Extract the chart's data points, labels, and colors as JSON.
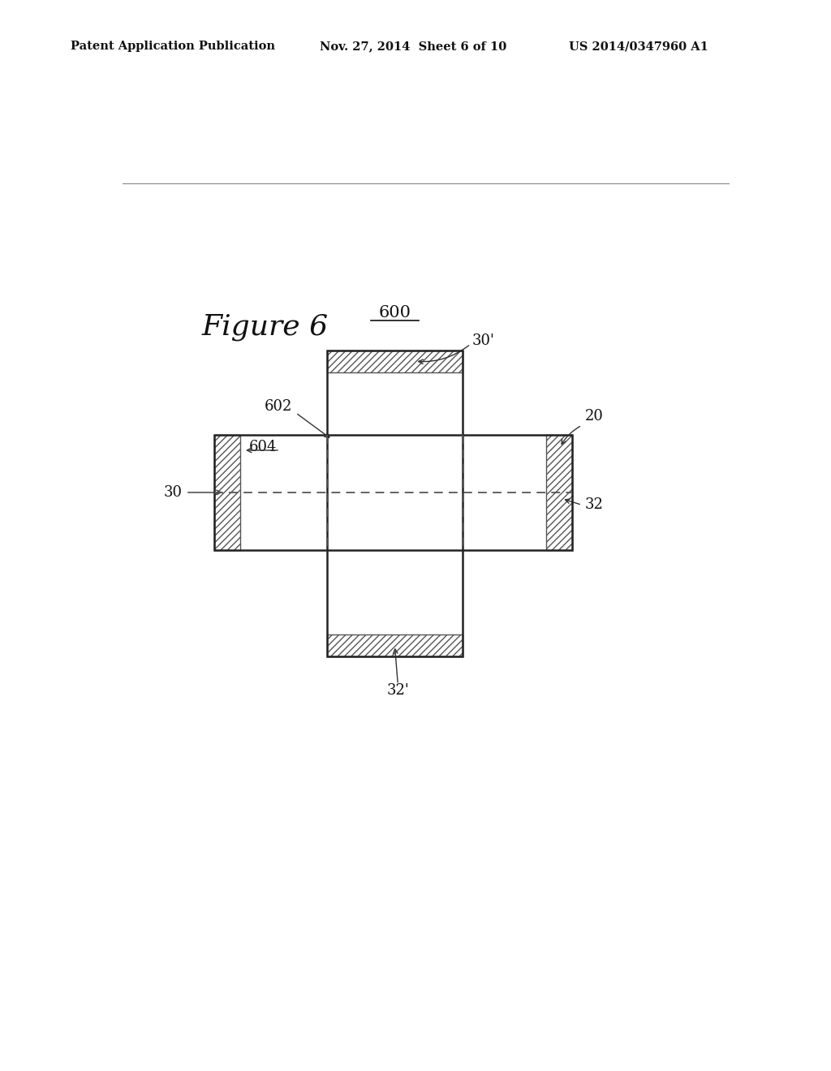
{
  "background_color": "#ffffff",
  "header_left": "Patent Application Publication",
  "header_center": "Nov. 27, 2014  Sheet 6 of 10",
  "header_right": "US 2014/0347960 A1",
  "figure_label": "Figure 6",
  "label_600": "600",
  "label_30p": "30'",
  "label_602": "602",
  "label_604": "604",
  "label_20": "20",
  "label_30": "30",
  "label_32": "32",
  "label_32p": "32'",
  "line_color": "#222222",
  "dashed_line_color": "#555555",
  "hatch_color": "#777777"
}
